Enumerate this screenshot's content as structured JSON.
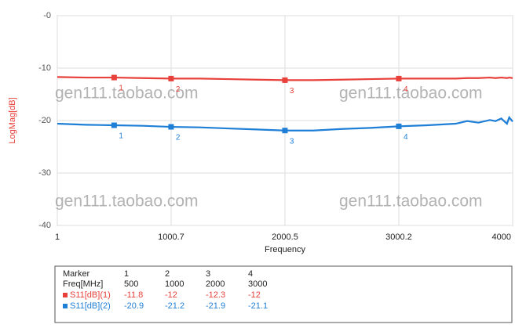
{
  "chart_data": {
    "type": "line",
    "x_label": "Frequency",
    "y_label": "LogMag[dB]",
    "xlim": [
      1,
      4000
    ],
    "xticks": [
      1,
      1000.7,
      2000.5,
      3000.2,
      4000
    ],
    "ylim": [
      -40,
      0
    ],
    "yticks": [
      {
        "value": 0,
        "label": "-0"
      },
      -10,
      -20,
      -30,
      -40
    ],
    "grid": true,
    "x": [
      1,
      250,
      500,
      750,
      1000,
      1250,
      1500,
      1750,
      2000,
      2250,
      2500,
      2750,
      3000,
      3250,
      3500,
      3600,
      3700,
      3800,
      3850,
      3900,
      3950,
      3970,
      4000
    ],
    "series": [
      {
        "name": "S11[dB](1)",
        "color": "#e8403a",
        "values": [
          -11.7,
          -11.8,
          -11.8,
          -11.9,
          -12,
          -12,
          -12.1,
          -12.2,
          -12.3,
          -12.3,
          -12.2,
          -12.1,
          -12,
          -12,
          -12,
          -11.9,
          -11.9,
          -11.8,
          -11.9,
          -11.8,
          -11.9,
          -11.8,
          -11.9
        ],
        "marker_values": [
          -11.8,
          -12,
          -12.3,
          -12
        ]
      },
      {
        "name": "S11[dB](2)",
        "color": "#1f7fd6",
        "values": [
          -20.6,
          -20.8,
          -20.9,
          -21,
          -21.2,
          -21.3,
          -21.5,
          -21.7,
          -21.9,
          -21.9,
          -21.6,
          -21.4,
          -21.1,
          -20.9,
          -20.6,
          -20.1,
          -20.4,
          -19.9,
          -20.1,
          -19.6,
          -20.6,
          -19.4,
          -20.2
        ],
        "marker_values": [
          -20.9,
          -21.2,
          -21.9,
          -21.1
        ]
      }
    ],
    "markers": {
      "title": "Marker",
      "freq_label": "Freq[MHz]",
      "ids": [
        "1",
        "2",
        "3",
        "4"
      ],
      "freq": [
        500,
        1000,
        2000,
        3000
      ]
    },
    "watermarks": [
      "gen111.taobao.com",
      "gen111.taobao.com",
      "gen111.taobao.com",
      "gen111.taobao.com"
    ]
  }
}
